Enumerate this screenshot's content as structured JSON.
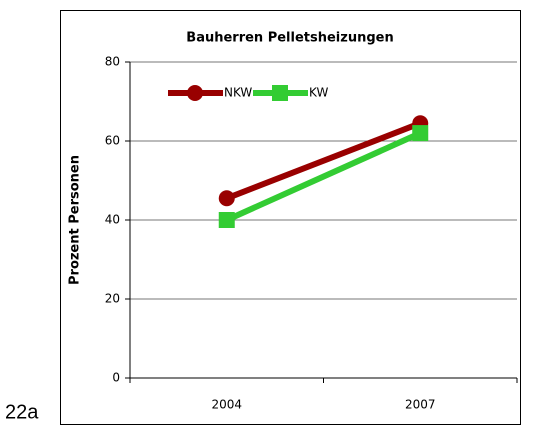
{
  "chart_data": {
    "type": "line",
    "title": "Bauherren Pelletsheizungen",
    "y_label": "Prozent Personen",
    "annotation": "22a",
    "categories": [
      "2004",
      "2007"
    ],
    "series": [
      {
        "name": "NKW",
        "color": "#990000",
        "marker": "circle",
        "values": [
          45.5,
          64.5
        ]
      },
      {
        "name": "KW",
        "color": "#33cc33",
        "marker": "square",
        "values": [
          40,
          62
        ]
      }
    ],
    "ylim": [
      0,
      80
    ],
    "yticks": [
      0,
      20,
      40,
      60,
      80
    ],
    "grid": true,
    "legend": "top-left"
  }
}
